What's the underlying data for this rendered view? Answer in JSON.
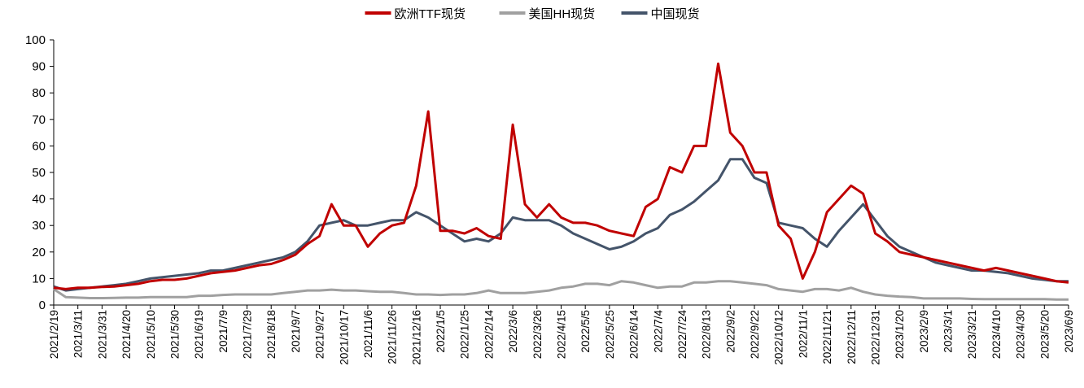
{
  "chart_data": {
    "type": "line",
    "categories": [
      "2021/2/19",
      null,
      "2021/3/11",
      null,
      "2021/3/31",
      null,
      "2021/4/20",
      null,
      "2021/5/10",
      null,
      "2021/5/30",
      null,
      "2021/6/19",
      null,
      "2021/7/9",
      null,
      "2021/7/29",
      null,
      "2021/8/18",
      null,
      "2021/9/7",
      null,
      "2021/9/27",
      null,
      "2021/10/17",
      null,
      "2021/11/6",
      null,
      "2021/11/26",
      null,
      "2021/12/16",
      null,
      "2022/1/5",
      null,
      "2022/1/25",
      null,
      "2022/2/14",
      null,
      "2022/3/6",
      null,
      "2022/3/26",
      null,
      "2022/4/15",
      null,
      "2022/5/5",
      null,
      "2022/5/25",
      null,
      "2022/6/14",
      null,
      "2022/7/4",
      null,
      "2022/7/24",
      null,
      "2022/8/13",
      null,
      "2022/9/2",
      null,
      "2022/9/22",
      null,
      "2022/10/12",
      null,
      "2022/11/1",
      null,
      "2022/11/21",
      null,
      "2022/12/11",
      null,
      "2022/12/31",
      null,
      "2023/1/20",
      null,
      "2023/2/9",
      null,
      "2023/3/1",
      null,
      "2023/3/21",
      null,
      "2023/4/10",
      null,
      "2023/4/30",
      null,
      "2023/5/20",
      null,
      "2023/6/9"
    ],
    "series": [
      {
        "name": "欧洲TTF现货",
        "color": "#c00000",
        "values": [
          6.5,
          6,
          6.5,
          6.5,
          6.8,
          7,
          7.5,
          8,
          9,
          9.5,
          9.5,
          10,
          11,
          12,
          12.5,
          13,
          14,
          15,
          15.5,
          17,
          19,
          23,
          26,
          38,
          30,
          30,
          22,
          27,
          30,
          31,
          45,
          73,
          28,
          28,
          27,
          29,
          26,
          25,
          68,
          38,
          33,
          38,
          33,
          31,
          31,
          30,
          28,
          27,
          26,
          37,
          40,
          52,
          50,
          60,
          60,
          91,
          65,
          60,
          50,
          50,
          30,
          25,
          10,
          20,
          35,
          40,
          45,
          42,
          27,
          24,
          20,
          19,
          18,
          17,
          16,
          15,
          14,
          13,
          14,
          13,
          12,
          11,
          10,
          9,
          8.5
        ]
      },
      {
        "name": "美国HH现货",
        "color": "#a0a0a0",
        "values": [
          6,
          3,
          2.8,
          2.6,
          2.6,
          2.7,
          2.8,
          2.8,
          3,
          3,
          3,
          3,
          3.5,
          3.5,
          3.8,
          4,
          4,
          4,
          4,
          4.5,
          5,
          5.5,
          5.5,
          5.8,
          5.5,
          5.5,
          5.2,
          5,
          5,
          4.5,
          4,
          4,
          3.8,
          4,
          4,
          4.5,
          5.5,
          4.5,
          4.5,
          4.5,
          5,
          5.5,
          6.5,
          7,
          8,
          8,
          7.5,
          9,
          8.5,
          7.5,
          6.5,
          7,
          7,
          8.5,
          8.5,
          9,
          9,
          8.5,
          8,
          7.5,
          6,
          5.5,
          5,
          6,
          6,
          5.5,
          6.5,
          5,
          4,
          3.5,
          3.2,
          3,
          2.5,
          2.5,
          2.5,
          2.5,
          2.3,
          2.2,
          2.2,
          2.2,
          2.2,
          2.2,
          2.2,
          2.1,
          2.1
        ]
      },
      {
        "name": "中国现货",
        "color": "#44546a",
        "values": [
          7,
          5.5,
          6,
          6.5,
          7,
          7.5,
          8,
          9,
          10,
          10.5,
          11,
          11.5,
          12,
          13,
          13,
          14,
          15,
          16,
          17,
          18,
          20,
          24,
          30,
          31,
          32,
          30,
          30,
          31,
          32,
          32,
          35,
          33,
          30,
          27,
          24,
          25,
          24,
          27,
          33,
          32,
          32,
          32,
          30,
          27,
          25,
          23,
          21,
          22,
          24,
          27,
          29,
          34,
          36,
          39,
          43,
          47,
          55,
          55,
          48,
          46,
          31,
          30,
          29,
          25,
          22,
          28,
          33,
          38,
          32,
          26,
          22,
          20,
          18,
          16,
          15,
          14,
          13,
          13,
          12.5,
          12,
          11,
          10,
          9.5,
          9,
          9
        ]
      }
    ],
    "ylim": [
      0,
      100
    ],
    "yticks": [
      0,
      10,
      20,
      30,
      40,
      50,
      60,
      70,
      80,
      90,
      100
    ],
    "grid": false,
    "legend": "top"
  }
}
